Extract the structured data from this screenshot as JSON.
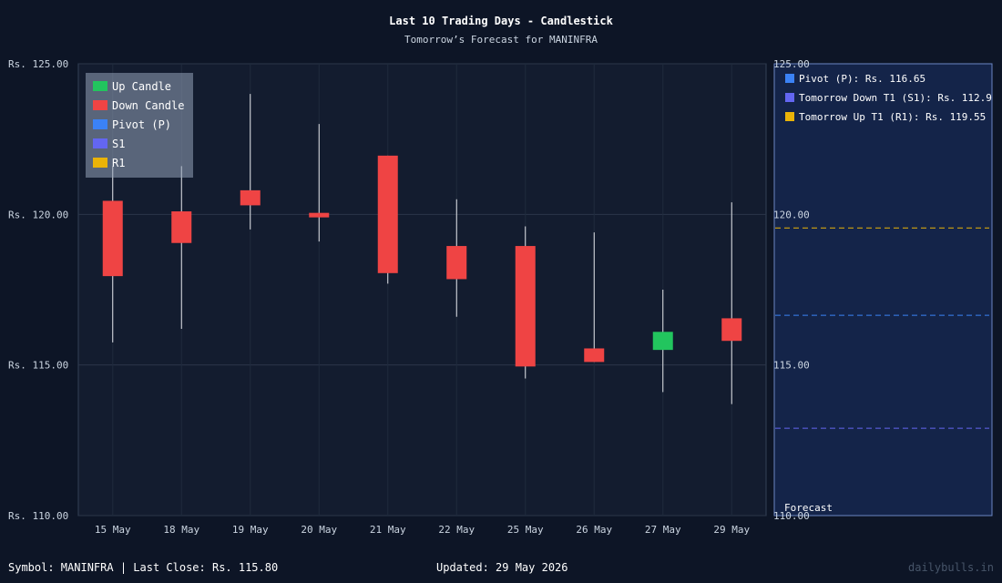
{
  "chart_data": {
    "type": "candlestick",
    "title": "Last 10 Trading Days - Candlestick",
    "subtitle": "Tomorrow’s Forecast for MANINFRA",
    "categories": [
      "15 May",
      "18 May",
      "19 May",
      "20 May",
      "21 May",
      "22 May",
      "25 May",
      "26 May",
      "27 May",
      "29 May"
    ],
    "candles": [
      {
        "date": "15 May",
        "open": 120.45,
        "high": 121.6,
        "low": 115.75,
        "close": 117.95
      },
      {
        "date": "18 May",
        "open": 120.1,
        "high": 121.6,
        "low": 116.2,
        "close": 119.05
      },
      {
        "date": "19 May",
        "open": 120.8,
        "high": 124.0,
        "low": 119.5,
        "close": 120.3
      },
      {
        "date": "20 May",
        "open": 120.05,
        "high": 123.0,
        "low": 119.1,
        "close": 119.9
      },
      {
        "date": "21 May",
        "open": 121.95,
        "high": 121.95,
        "low": 117.7,
        "close": 118.05
      },
      {
        "date": "22 May",
        "open": 118.95,
        "high": 120.5,
        "low": 116.6,
        "close": 117.85
      },
      {
        "date": "25 May",
        "open": 118.95,
        "high": 119.6,
        "low": 114.55,
        "close": 114.95
      },
      {
        "date": "26 May",
        "open": 115.55,
        "high": 119.4,
        "low": 115.1,
        "close": 115.1
      },
      {
        "date": "27 May",
        "open": 115.5,
        "high": 117.5,
        "low": 114.1,
        "close": 116.1
      },
      {
        "date": "29 May",
        "open": 116.55,
        "high": 120.4,
        "low": 113.7,
        "close": 115.8
      }
    ],
    "ylim": [
      110,
      125
    ],
    "yticks": [
      110,
      115,
      120,
      125
    ],
    "tick_prefix": "Rs. ",
    "legend": {
      "placement": "top-left",
      "items": [
        {
          "label": "Up Candle",
          "color": "#22c55e"
        },
        {
          "label": "Down Candle",
          "color": "#ef4444"
        },
        {
          "label": "Pivot (P)",
          "color": "#3b82f6"
        },
        {
          "label": "S1",
          "color": "#6366f1"
        },
        {
          "label": "R1",
          "color": "#eab308"
        }
      ]
    },
    "forecast": {
      "label": "Forecast",
      "pivot": {
        "label": "Pivot (P): Rs. 116.65",
        "value": 116.65,
        "color": "#3b82f6"
      },
      "s1": {
        "label": "Tomorrow Down T1 (S1): Rs. 112.9",
        "value": 112.9,
        "color": "#6366f1"
      },
      "r1": {
        "label": "Tomorrow Up T1 (R1): Rs. 119.55",
        "value": 119.55,
        "color": "#eab308"
      }
    },
    "colors": {
      "up": "#22c55e",
      "down": "#ef4444"
    }
  },
  "footer": {
    "symbol": "Symbol: MANINFRA  |  Last Close: Rs. 115.80",
    "updated": "Updated: 29 May 2026",
    "brand": "dailybulls.in"
  }
}
